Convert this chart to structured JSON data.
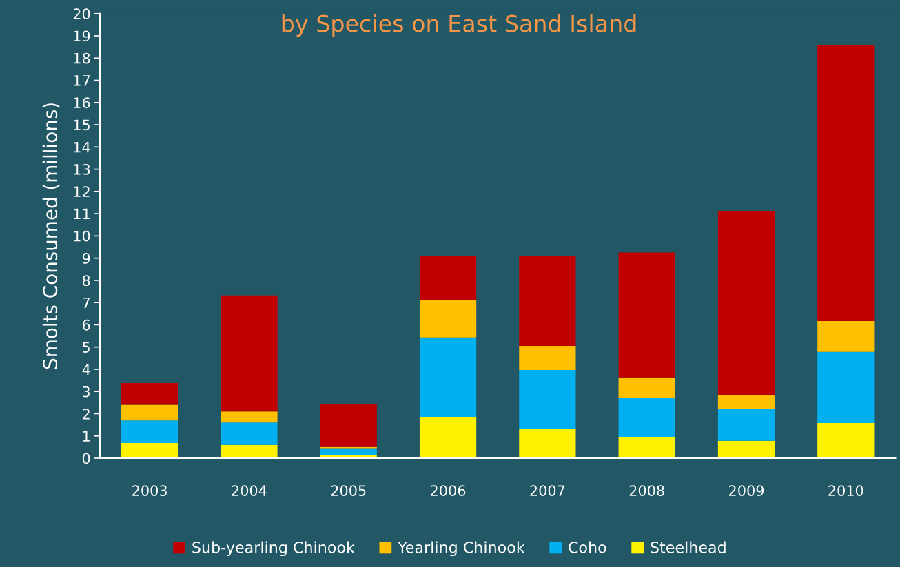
{
  "chart_data": {
    "type": "bar",
    "title": "by Species on East Sand Island",
    "ylabel": "Smolts Consumed (millions)",
    "categories": [
      "2003",
      "2004",
      "2005",
      "2006",
      "2007",
      "2008",
      "2009",
      "2010"
    ],
    "stacked": true,
    "series": [
      {
        "name": "Steelhead",
        "color": "#fff200",
        "values": [
          0.68,
          0.6,
          0.15,
          1.85,
          1.3,
          0.93,
          0.78,
          1.58
        ]
      },
      {
        "name": "Coho",
        "color": "#00b0f0",
        "values": [
          1.02,
          1.0,
          0.3,
          3.58,
          2.67,
          1.77,
          1.42,
          3.2
        ]
      },
      {
        "name": "Yearling Chinook",
        "color": "#ffc000",
        "values": [
          0.7,
          0.5,
          0.05,
          1.7,
          1.08,
          0.93,
          0.65,
          1.39
        ]
      },
      {
        "name": "Sub-yearling Chinook",
        "color": "#c00000",
        "values": [
          0.98,
          5.22,
          1.92,
          1.95,
          4.05,
          5.62,
          8.28,
          12.4
        ]
      }
    ],
    "ylim": [
      0,
      20
    ],
    "yticks": [
      0,
      1,
      2,
      3,
      4,
      5,
      6,
      7,
      8,
      9,
      10,
      11,
      12,
      13,
      14,
      15,
      16,
      17,
      18,
      19,
      20
    ],
    "grid": false,
    "legend": "bottom"
  }
}
